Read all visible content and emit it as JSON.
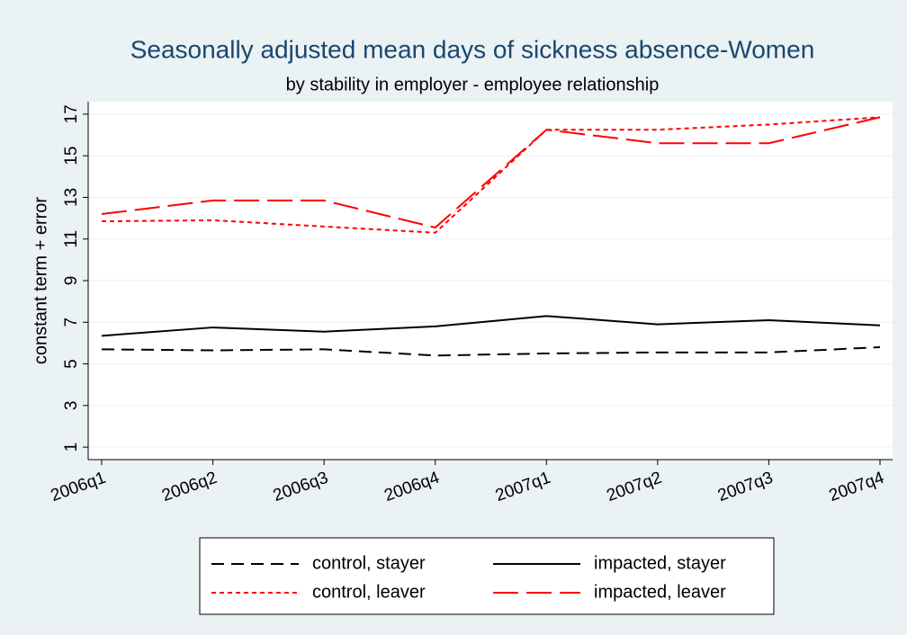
{
  "chart_data": {
    "type": "line",
    "title": "Seasonally adjusted mean days of sickness absence-Women",
    "subtitle": "by stability in employer - employee relationship",
    "y_label": "constant term + error",
    "categories": [
      "2006q1",
      "2006q2",
      "2006q3",
      "2006q4",
      "2007q1",
      "2007q2",
      "2007q3",
      "2007q4"
    ],
    "series": [
      {
        "name": "control, stayer",
        "color": "#000000",
        "dash": "dash",
        "values": [
          5.7,
          5.65,
          5.7,
          5.4,
          5.5,
          5.55,
          5.55,
          5.8
        ]
      },
      {
        "name": "impacted, stayer",
        "color": "#000000",
        "dash": "solid",
        "values": [
          6.35,
          6.75,
          6.55,
          6.8,
          7.3,
          6.9,
          7.1,
          6.85
        ]
      },
      {
        "name": "control, leaver",
        "color": "#ff0000",
        "dash": "shortdash",
        "values": [
          11.85,
          11.9,
          11.6,
          11.3,
          16.25,
          16.25,
          16.5,
          16.85
        ]
      },
      {
        "name": "impacted, leaver",
        "color": "#ff0000",
        "dash": "longdash",
        "values": [
          12.2,
          12.85,
          12.85,
          11.55,
          16.25,
          15.6,
          15.6,
          16.85
        ]
      }
    ],
    "ylim": [
      0.4,
      17.6
    ],
    "yticks": [
      1,
      3,
      5,
      7,
      9,
      11,
      13,
      15,
      17
    ],
    "grid": true,
    "legend": "bottom"
  }
}
